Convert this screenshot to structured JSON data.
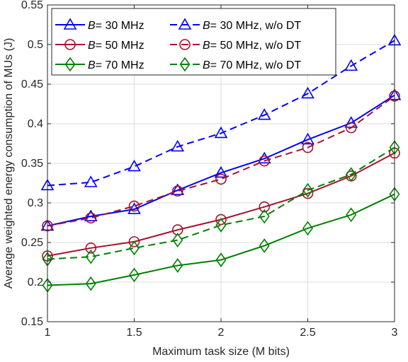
{
  "chart_data": {
    "type": "line",
    "xlabel": "Maximum task size (M bits)",
    "ylabel": "Average weighted energy consumption of MUs (J)",
    "xlim": [
      1,
      3
    ],
    "ylim": [
      0.15,
      0.55
    ],
    "x_ticks": [
      "1",
      "1.5",
      "2",
      "2.5",
      "3"
    ],
    "y_ticks": [
      "0.15",
      "0.2",
      "0.25",
      "0.3",
      "0.35",
      "0.4",
      "0.45",
      "0.5",
      "0.55"
    ],
    "grid": true,
    "legend_position": "top-left",
    "x": [
      1,
      1.25,
      1.5,
      1.75,
      2,
      2.25,
      2.5,
      2.75,
      3
    ],
    "series": [
      {
        "name": "B= 30 MHz",
        "legend_var": "B",
        "legend_rest": "= 30 MHz",
        "color": "#0000ff",
        "marker": "triangle",
        "dash": "solid",
        "values": [
          0.271,
          0.283,
          0.292,
          0.316,
          0.338,
          0.356,
          0.38,
          0.401,
          0.436
        ]
      },
      {
        "name": "B= 30 MHz, w/o DT",
        "legend_var": "B",
        "legend_rest": "= 30 MHz, w/o DT",
        "color": "#0000ff",
        "marker": "triangle",
        "dash": "dashed",
        "values": [
          0.322,
          0.326,
          0.346,
          0.371,
          0.388,
          0.411,
          0.438,
          0.473,
          0.505
        ]
      },
      {
        "name": "B= 50 MHz",
        "legend_var": "B",
        "legend_rest": "= 50 MHz",
        "color": "#a2142f",
        "marker": "circle",
        "dash": "solid",
        "values": [
          0.233,
          0.243,
          0.251,
          0.266,
          0.279,
          0.295,
          0.312,
          0.334,
          0.363
        ]
      },
      {
        "name": "B= 50 MHz, w/o DT",
        "legend_var": "B",
        "legend_rest": "= 50 MHz, w/o DT",
        "color": "#a2142f",
        "marker": "circle",
        "dash": "dashed",
        "values": [
          0.271,
          0.281,
          0.296,
          0.315,
          0.33,
          0.353,
          0.37,
          0.395,
          0.435
        ]
      },
      {
        "name": "B= 70 MHz",
        "legend_var": "B",
        "legend_rest": "= 70 MHz",
        "color": "#008000",
        "marker": "diamond",
        "dash": "solid",
        "values": [
          0.196,
          0.198,
          0.209,
          0.221,
          0.228,
          0.246,
          0.268,
          0.285,
          0.311
        ]
      },
      {
        "name": "B= 70 MHz, w/o DT",
        "legend_var": "B",
        "legend_rest": "= 70 MHz, w/o DT",
        "color": "#008000",
        "marker": "diamond",
        "dash": "dashed",
        "values": [
          0.229,
          0.232,
          0.243,
          0.253,
          0.272,
          0.283,
          0.316,
          0.336,
          0.37
        ]
      }
    ]
  }
}
